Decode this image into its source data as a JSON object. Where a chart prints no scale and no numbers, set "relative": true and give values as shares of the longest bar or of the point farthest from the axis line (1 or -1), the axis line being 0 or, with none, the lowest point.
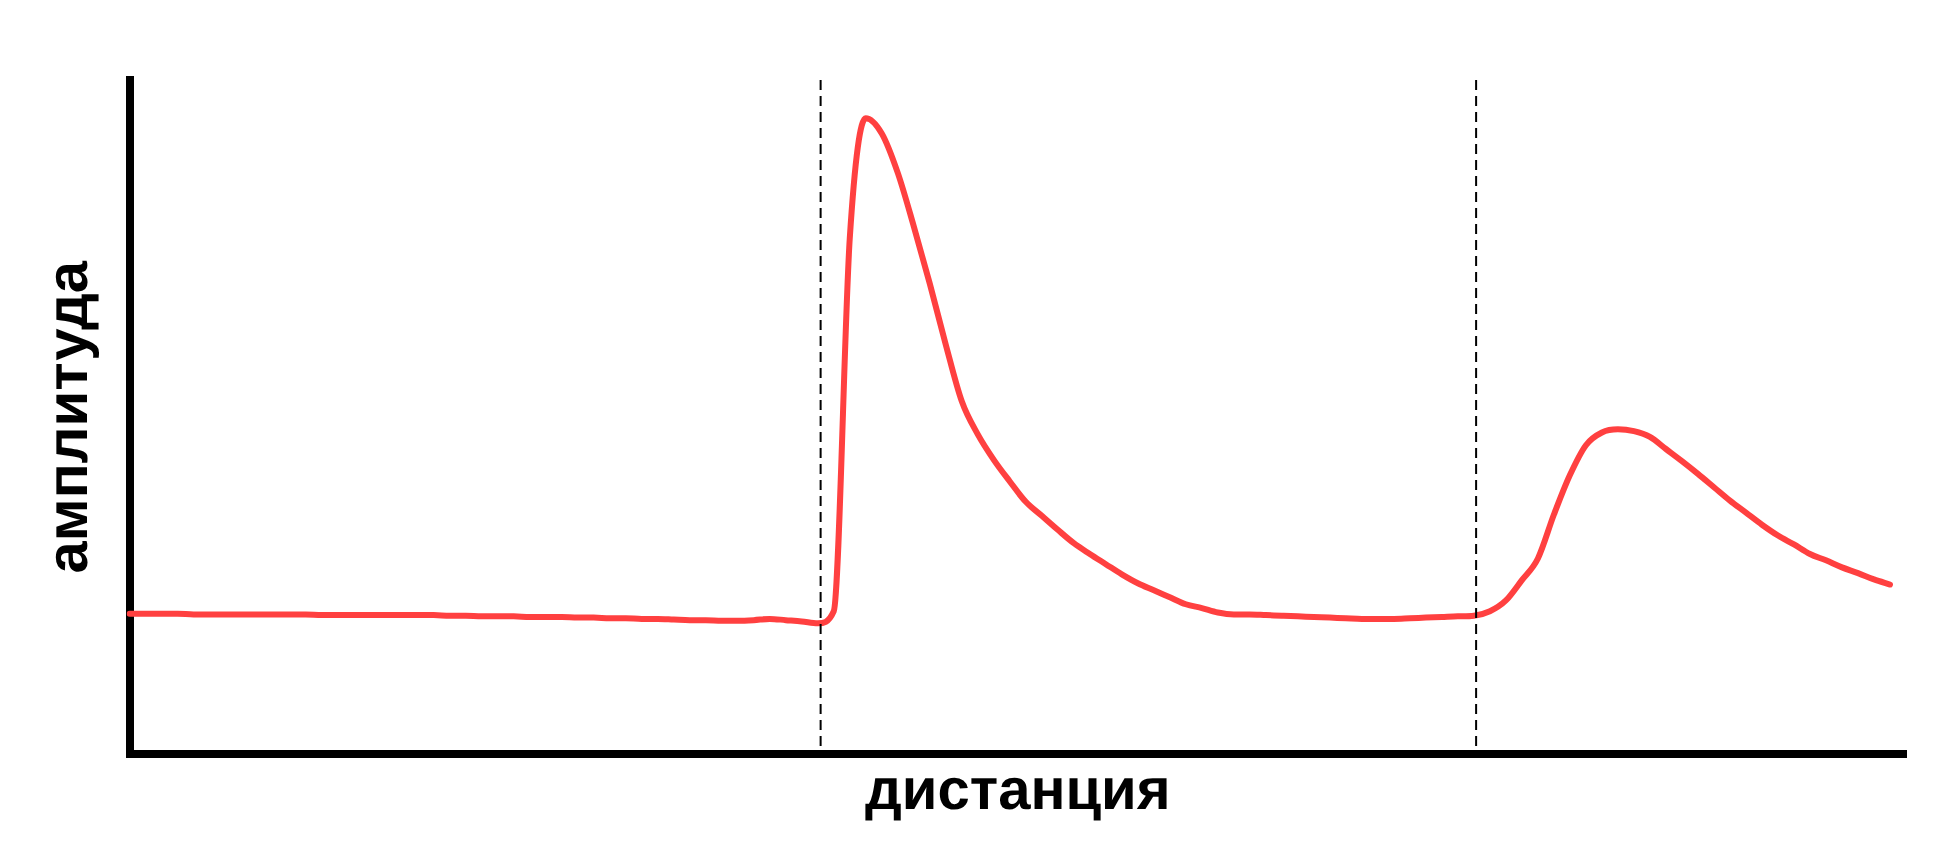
{
  "chart_data": {
    "type": "line",
    "xlabel": "дистанция",
    "ylabel": "амплитуда",
    "relative": true,
    "marker": "none",
    "line_style": "solid",
    "categories": [
      null,
      null,
      null,
      null,
      null,
      null,
      null,
      null,
      null,
      null,
      null,
      null,
      null,
      null,
      null,
      null,
      null,
      null,
      null,
      null,
      null,
      null,
      null,
      null,
      null,
      null,
      null,
      null,
      null,
      null,
      null,
      null,
      null,
      null,
      null,
      null,
      null,
      null,
      null,
      null,
      null,
      null,
      null,
      null,
      null,
      null,
      null,
      null,
      null,
      null,
      null,
      null,
      null,
      null,
      null,
      null,
      null,
      null,
      null,
      null,
      null,
      null,
      null,
      null,
      null,
      null,
      null,
      null,
      null,
      null,
      null,
      null,
      null,
      null,
      null,
      null,
      null,
      null,
      null,
      null,
      null,
      null,
      null,
      null,
      null,
      null,
      null,
      null,
      null,
      null,
      null,
      null,
      null,
      null,
      null,
      null,
      null,
      null,
      null,
      null,
      null,
      null,
      null,
      null,
      null,
      null,
      null,
      null,
      null,
      null,
      null,
      null
    ],
    "series": [
      {
        "color": "#ff4040",
        "values": [
          0.221,
          0.221,
          0.221,
          0.221,
          0.22,
          0.22,
          0.22,
          0.22,
          0.22,
          0.22,
          0.22,
          0.22,
          0.219,
          0.219,
          0.219,
          0.219,
          0.219,
          0.219,
          0.219,
          0.219,
          0.218,
          0.218,
          0.217,
          0.217,
          0.217,
          0.216,
          0.216,
          0.216,
          0.215,
          0.215,
          0.214,
          0.214,
          0.213,
          0.213,
          0.212,
          0.211,
          0.211,
          0.21,
          0.21,
          0.211,
          0.213,
          0.211,
          0.209,
          0.206,
          0.225,
          0.811,
          1,
          0.976,
          0.914,
          0.83,
          0.74,
          0.644,
          0.555,
          0.503,
          0.463,
          0.429,
          0.397,
          0.375,
          0.353,
          0.332,
          0.315,
          0.299,
          0.283,
          0.269,
          0.258,
          0.247,
          0.236,
          0.23,
          0.223,
          0.22,
          0.22,
          0.219,
          0.218,
          0.217,
          0.216,
          0.215,
          0.214,
          0.213,
          0.213,
          0.213,
          0.214,
          0.215,
          0.216,
          0.217,
          0.218,
          0.225,
          0.242,
          0.274,
          0.308,
          0.377,
          0.439,
          0.486,
          0.506,
          0.511,
          0.508,
          0.499,
          0.48,
          0.461,
          0.441,
          0.42,
          0.399,
          0.38,
          0.361,
          0.344,
          0.33,
          0.315,
          0.305,
          0.294,
          0.285,
          0.275,
          0.267,
          null
        ]
      }
    ]
  }
}
